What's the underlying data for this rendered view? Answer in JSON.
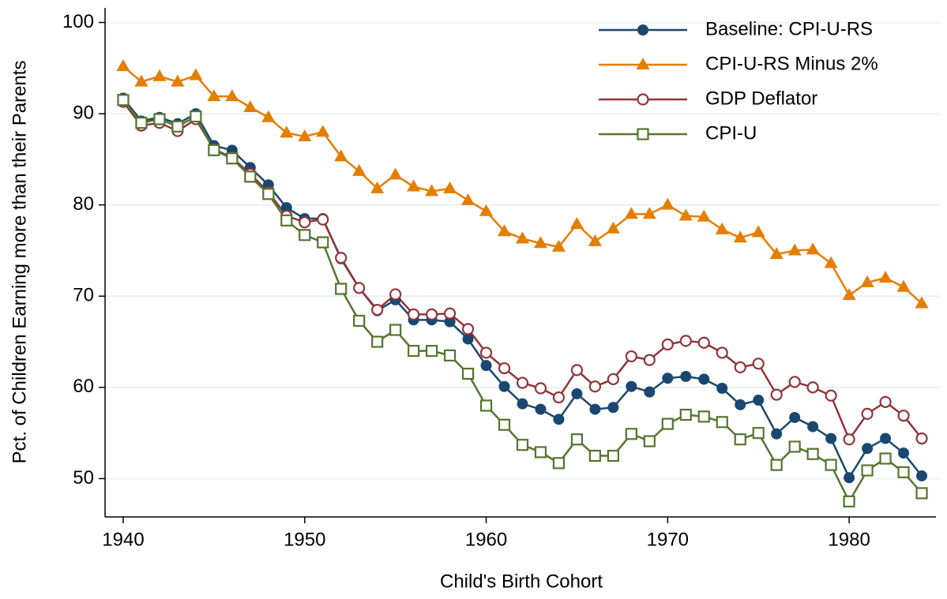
{
  "chart_data": {
    "type": "line",
    "x_label": "Child's Birth Cohort",
    "y_label": "Pct. of Children Earning more than their Parents",
    "x": [
      1940,
      1941,
      1942,
      1943,
      1944,
      1945,
      1946,
      1947,
      1948,
      1949,
      1950,
      1951,
      1952,
      1953,
      1954,
      1955,
      1956,
      1957,
      1958,
      1959,
      1960,
      1961,
      1962,
      1963,
      1964,
      1965,
      1966,
      1967,
      1968,
      1969,
      1970,
      1971,
      1972,
      1973,
      1974,
      1975,
      1976,
      1977,
      1978,
      1979,
      1980,
      1981,
      1982,
      1983,
      1984
    ],
    "xlim": [
      1939,
      1985
    ],
    "xticks": [
      1940,
      1950,
      1960,
      1970,
      1980
    ],
    "ylim": [
      45.8,
      101.6
    ],
    "yticks": [
      50,
      60,
      70,
      80,
      90,
      100
    ],
    "grid": true,
    "legend": "top-right",
    "series": [
      {
        "name": "Baseline: CPI-U-RS",
        "color": "#1a476f",
        "marker": "circle",
        "values": [
          91.7,
          89.2,
          89.6,
          88.9,
          90.0,
          86.5,
          86.0,
          84.1,
          82.2,
          79.7,
          78.5,
          78.5,
          74.1,
          70.9,
          68.4,
          69.6,
          67.4,
          67.4,
          67.2,
          65.3,
          62.4,
          60.1,
          58.2,
          57.6,
          56.5,
          59.3,
          57.6,
          57.8,
          60.1,
          59.5,
          61.0,
          61.2,
          60.9,
          59.9,
          58.1,
          58.6,
          54.9,
          56.7,
          55.7,
          54.4,
          50.1,
          53.3,
          54.4,
          52.8,
          50.3
        ]
      },
      {
        "name": "CPI-U-RS Minus 2%",
        "color": "#e37e00",
        "marker": "triangle",
        "values": [
          95.2,
          93.5,
          94.1,
          93.5,
          94.2,
          91.9,
          91.9,
          90.7,
          89.6,
          87.9,
          87.5,
          88.0,
          85.3,
          83.7,
          81.8,
          83.3,
          82.0,
          81.5,
          81.8,
          80.5,
          79.3,
          77.1,
          76.3,
          75.8,
          75.4,
          77.9,
          76.0,
          77.4,
          79.0,
          79.0,
          80.0,
          78.8,
          78.7,
          77.3,
          76.4,
          77.0,
          74.6,
          75.0,
          75.1,
          73.6,
          70.1,
          71.5,
          72.0,
          71.0,
          69.2
        ]
      },
      {
        "name": "GDP Deflator",
        "color": "#90353b",
        "marker": "circle-open",
        "values": [
          91.3,
          88.7,
          89.0,
          88.1,
          89.4,
          86.1,
          85.2,
          83.4,
          81.4,
          78.8,
          78.1,
          78.4,
          74.2,
          70.9,
          68.5,
          70.2,
          68.0,
          68.0,
          68.1,
          66.4,
          63.8,
          62.1,
          60.5,
          59.9,
          58.9,
          61.9,
          60.1,
          60.9,
          63.4,
          63.0,
          64.7,
          65.1,
          64.9,
          63.8,
          62.2,
          62.6,
          59.2,
          60.6,
          60.0,
          59.1,
          54.3,
          57.1,
          58.4,
          56.9,
          54.4
        ]
      },
      {
        "name": "CPI-U",
        "color": "#55752f",
        "marker": "square-open",
        "values": [
          91.5,
          89.0,
          89.4,
          88.6,
          89.7,
          86.0,
          85.1,
          83.1,
          81.2,
          78.3,
          76.7,
          75.9,
          70.8,
          67.3,
          65.0,
          66.3,
          64.0,
          64.0,
          63.5,
          61.5,
          58.0,
          55.9,
          53.7,
          52.9,
          51.7,
          54.3,
          52.5,
          52.5,
          54.9,
          54.1,
          56.0,
          57.0,
          56.8,
          56.2,
          54.3,
          55.0,
          51.5,
          53.5,
          52.7,
          51.5,
          47.5,
          50.9,
          52.2,
          50.7,
          48.4
        ]
      }
    ]
  }
}
